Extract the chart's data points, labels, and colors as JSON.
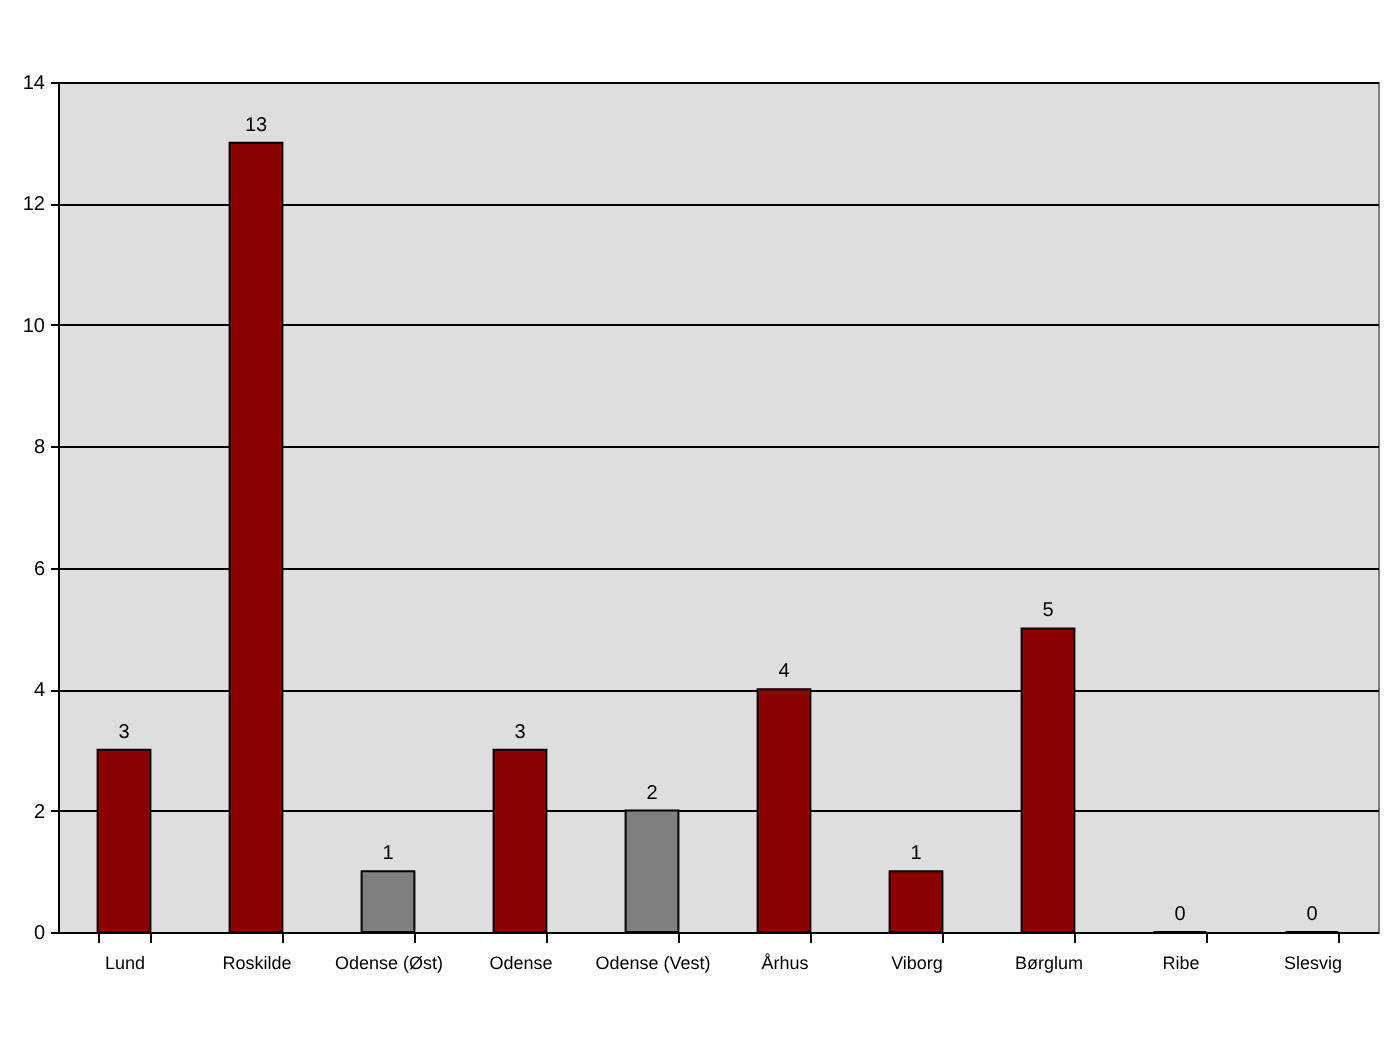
{
  "chart_data": {
    "type": "bar",
    "categories": [
      "Lund",
      "Roskilde",
      "Odense (Øst)",
      "Odense",
      "Odense (Vest)",
      "Århus",
      "Viborg",
      "Børglum",
      "Ribe",
      "Slesvig"
    ],
    "values": [
      3,
      13,
      1,
      3,
      2,
      4,
      1,
      5,
      0,
      0
    ],
    "colors": [
      "#8b0000",
      "#8b0000",
      "#808080",
      "#8b0000",
      "#808080",
      "#8b0000",
      "#8b0000",
      "#8b0000",
      "#000000",
      "#000000"
    ],
    "ylim": [
      0,
      14
    ],
    "yticks": [
      0,
      2,
      4,
      6,
      8,
      10,
      12,
      14
    ],
    "grid": "y",
    "data_labels": true
  }
}
